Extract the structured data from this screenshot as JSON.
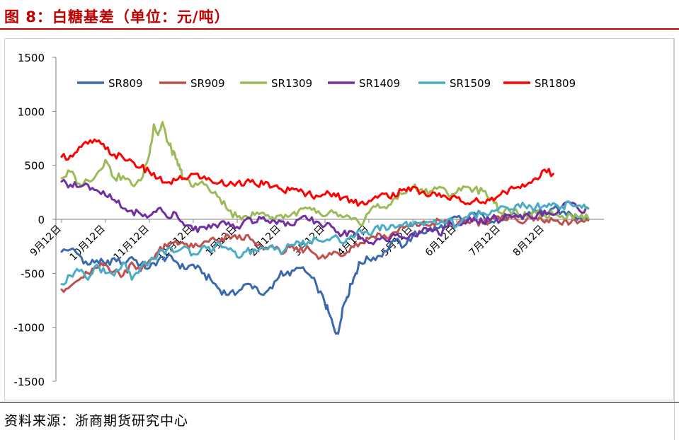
{
  "figure": {
    "title": "图 8：白糖基差（单位：元/吨）",
    "source": "资料来源：浙商期货研究中心"
  },
  "chart_data": {
    "type": "line",
    "ylim": [
      -1500,
      1500
    ],
    "yticks": [
      1500,
      1000,
      500,
      0,
      -500,
      -1000,
      -1500
    ],
    "xlim": [
      0,
      12
    ],
    "categories": [
      "9月12日",
      "10月12日",
      "11月12日",
      "12月12日",
      "1月12日",
      "2月12日",
      "3月12日",
      "4月12日",
      "5月12日",
      "6月12日",
      "7月12日",
      "8月12日"
    ],
    "legend_position": "top",
    "grid": false,
    "series": [
      {
        "name": "SR809",
        "color": "#3a6aad",
        "x": [
          0,
          0.2,
          0.4,
          0.6,
          0.8,
          1.0,
          1.2,
          1.4,
          1.6,
          1.8,
          2.0,
          2.2,
          2.4,
          2.6,
          2.8,
          3.0,
          3.2,
          3.4,
          3.6,
          3.8,
          4.0,
          4.2,
          4.4,
          4.6,
          4.8,
          5.0,
          5.2,
          5.4,
          5.6,
          5.8,
          6.0,
          6.1,
          6.2,
          6.3,
          6.4,
          6.5,
          6.6,
          6.7,
          6.8,
          7.0,
          7.2,
          7.4,
          7.6,
          7.8,
          8.0,
          8.2,
          8.4,
          8.6,
          8.8,
          9.0,
          9.2,
          9.4,
          9.6,
          9.8,
          10.0,
          10.2,
          10.4,
          10.6,
          10.8,
          11.0,
          11.2,
          11.4,
          11.6,
          11.8,
          12.0
        ],
        "y": [
          -300,
          -280,
          -330,
          -420,
          -380,
          -420,
          -360,
          -400,
          -350,
          -420,
          -450,
          -380,
          -350,
          -390,
          -460,
          -420,
          -500,
          -560,
          -650,
          -700,
          -680,
          -600,
          -620,
          -700,
          -640,
          -480,
          -520,
          -450,
          -500,
          -600,
          -780,
          -880,
          -1000,
          -1060,
          -820,
          -720,
          -600,
          -500,
          -400,
          -370,
          -340,
          -300,
          -200,
          -250,
          -150,
          -120,
          -100,
          -80,
          -40,
          20,
          -20,
          60,
          40,
          -20,
          10,
          30,
          20,
          40,
          80,
          60,
          100,
          70,
          50,
          20,
          10
        ]
      },
      {
        "name": "SR909",
        "color": "#c0504d",
        "x": [
          0,
          0.2,
          0.4,
          0.6,
          0.8,
          1.0,
          1.2,
          1.4,
          1.6,
          1.8,
          2.0,
          2.2,
          2.4,
          2.6,
          2.8,
          3.0,
          3.2,
          3.4,
          3.6,
          3.8,
          4.0,
          4.2,
          4.4,
          4.6,
          4.8,
          5.0,
          5.2,
          5.4,
          5.6,
          5.8,
          6.0,
          6.2,
          6.4,
          6.6,
          6.8,
          7.0,
          7.2,
          7.4,
          7.6,
          7.8,
          8.0,
          8.2,
          8.4,
          8.6,
          8.8,
          9.0,
          9.2,
          9.4,
          9.6,
          9.8,
          10.0,
          10.2,
          10.4,
          10.6,
          10.8,
          11.0,
          11.2,
          11.4,
          11.6,
          11.8,
          12.0
        ],
        "y": [
          -650,
          -620,
          -560,
          -500,
          -450,
          -420,
          -480,
          -520,
          -400,
          -480,
          -380,
          -300,
          -250,
          -200,
          -230,
          -260,
          -230,
          -180,
          -220,
          -150,
          -180,
          -150,
          -220,
          -280,
          -250,
          -320,
          -260,
          -300,
          -250,
          -330,
          -360,
          -300,
          -340,
          -250,
          -220,
          -180,
          -130,
          -170,
          -120,
          -80,
          -60,
          -40,
          -60,
          -10,
          -40,
          -60,
          -20,
          -10,
          -40,
          10,
          0,
          30,
          -20,
          0,
          20,
          -30,
          -10,
          -50,
          -30,
          -20,
          -10
        ]
      },
      {
        "name": "SR1309",
        "color": "#9bbb59",
        "x": [
          0,
          0.2,
          0.4,
          0.6,
          0.8,
          1.0,
          1.2,
          1.4,
          1.6,
          1.8,
          2.0,
          2.1,
          2.2,
          2.3,
          2.4,
          2.5,
          2.6,
          2.7,
          2.8,
          3.0,
          3.2,
          3.4,
          3.6,
          3.8,
          4.0,
          4.2,
          4.4,
          4.6,
          4.8,
          5.0,
          5.2,
          5.4,
          5.6,
          5.8,
          6.0,
          6.2,
          6.4,
          6.6,
          6.8,
          7.0,
          7.2,
          7.4,
          7.6,
          7.8,
          8.0,
          8.2,
          8.4,
          8.6,
          8.8,
          9.0,
          9.2,
          9.4,
          9.6,
          9.8,
          10.0,
          10.2,
          10.4,
          10.6,
          10.8,
          11.0,
          11.2,
          11.4,
          11.6,
          11.8,
          12.0
        ],
        "y": [
          380,
          440,
          330,
          360,
          420,
          550,
          380,
          400,
          320,
          360,
          600,
          880,
          780,
          900,
          720,
          650,
          560,
          460,
          370,
          300,
          350,
          250,
          200,
          80,
          20,
          30,
          40,
          60,
          20,
          40,
          30,
          80,
          100,
          60,
          30,
          60,
          20,
          0,
          -50,
          60,
          140,
          100,
          200,
          240,
          300,
          280,
          260,
          300,
          230,
          250,
          300,
          280,
          260,
          200,
          60,
          80,
          50,
          30,
          60,
          40,
          50,
          30,
          40,
          20,
          10
        ]
      },
      {
        "name": "SR1409",
        "color": "#7030a0",
        "x": [
          0,
          0.2,
          0.4,
          0.6,
          0.8,
          1.0,
          1.2,
          1.4,
          1.6,
          1.8,
          2.0,
          2.2,
          2.4,
          2.6,
          2.8,
          3.0,
          3.2,
          3.4,
          3.6,
          3.8,
          4.0,
          4.2,
          4.4,
          4.6,
          4.8,
          5.0,
          5.2,
          5.4,
          5.6,
          5.8,
          6.0,
          6.2,
          6.4,
          6.6,
          6.8,
          7.0,
          7.2,
          7.4,
          7.6,
          7.8,
          8.0,
          8.2,
          8.4,
          8.6,
          8.8,
          9.0,
          9.2,
          9.4,
          9.6,
          9.8,
          10.0,
          10.2,
          10.4,
          10.6,
          10.8,
          11.0,
          11.2,
          11.4,
          11.6,
          11.8,
          12.0
        ],
        "y": [
          350,
          320,
          300,
          320,
          270,
          220,
          180,
          100,
          80,
          50,
          30,
          100,
          20,
          60,
          -60,
          -100,
          -70,
          -80,
          -40,
          -30,
          -70,
          0,
          -30,
          20,
          -10,
          -20,
          -50,
          0,
          0,
          -20,
          -60,
          -80,
          -140,
          -110,
          -180,
          -220,
          -180,
          -200,
          -150,
          -170,
          -130,
          -120,
          -80,
          -140,
          -60,
          -50,
          -40,
          20,
          -30,
          10,
          -10,
          40,
          20,
          50,
          10,
          80,
          40,
          120,
          150,
          80,
          100
        ]
      },
      {
        "name": "SR1509",
        "color": "#4bacc6",
        "x": [
          0,
          0.2,
          0.4,
          0.6,
          0.8,
          1.0,
          1.2,
          1.4,
          1.6,
          1.8,
          2.0,
          2.2,
          2.4,
          2.6,
          2.8,
          3.0,
          3.2,
          3.4,
          3.6,
          3.8,
          4.0,
          4.2,
          4.4,
          4.6,
          4.8,
          5.0,
          5.2,
          5.4,
          5.6,
          5.8,
          6.0,
          6.2,
          6.4,
          6.6,
          6.8,
          7.0,
          7.2,
          7.4,
          7.6,
          7.8,
          8.0,
          8.2,
          8.4,
          8.6,
          8.8,
          9.0,
          9.2,
          9.4,
          9.6,
          9.8,
          10.0,
          10.2,
          10.4,
          10.6,
          10.8,
          11.0,
          11.2,
          11.4,
          11.6,
          11.8,
          12.0
        ],
        "y": [
          -600,
          -520,
          -480,
          -560,
          -420,
          -500,
          -520,
          -400,
          -560,
          -450,
          -400,
          -320,
          -280,
          -300,
          -250,
          -320,
          -260,
          -300,
          -220,
          -280,
          -350,
          -300,
          -280,
          -260,
          -240,
          -320,
          -240,
          -210,
          -220,
          -180,
          -200,
          -160,
          -220,
          -150,
          -100,
          -140,
          -60,
          -100,
          -80,
          -40,
          -60,
          -30,
          -20,
          -40,
          0,
          -60,
          20,
          40,
          60,
          80,
          120,
          90,
          140,
          100,
          110,
          130,
          150,
          120,
          140,
          130,
          100
        ]
      },
      {
        "name": "SR1809",
        "color": "#ff0000",
        "x": [
          0,
          0.2,
          0.4,
          0.6,
          0.8,
          1.0,
          1.2,
          1.4,
          1.6,
          1.8,
          2.0,
          2.2,
          2.4,
          2.6,
          2.8,
          3.0,
          3.2,
          3.4,
          3.6,
          3.8,
          4.0,
          4.2,
          4.4,
          4.6,
          4.8,
          5.0,
          5.2,
          5.4,
          5.6,
          5.8,
          6.0,
          6.2,
          6.4,
          6.6,
          6.8,
          7.0,
          7.2,
          7.4,
          7.6,
          7.8,
          8.0,
          8.2,
          8.4,
          8.6,
          8.8,
          9.0,
          9.2,
          9.4,
          9.6,
          9.8,
          10.0,
          10.2,
          10.4,
          10.6,
          10.8,
          11.0,
          11.2
        ],
        "y": [
          580,
          590,
          670,
          700,
          720,
          650,
          600,
          570,
          540,
          480,
          440,
          380,
          340,
          360,
          380,
          420,
          380,
          360,
          340,
          320,
          340,
          350,
          330,
          320,
          300,
          280,
          270,
          260,
          240,
          220,
          230,
          240,
          200,
          180,
          150,
          170,
          200,
          240,
          210,
          280,
          300,
          250,
          220,
          240,
          190,
          200,
          140,
          170,
          160,
          200,
          230,
          280,
          300,
          320,
          380,
          460,
          420
        ]
      }
    ]
  }
}
